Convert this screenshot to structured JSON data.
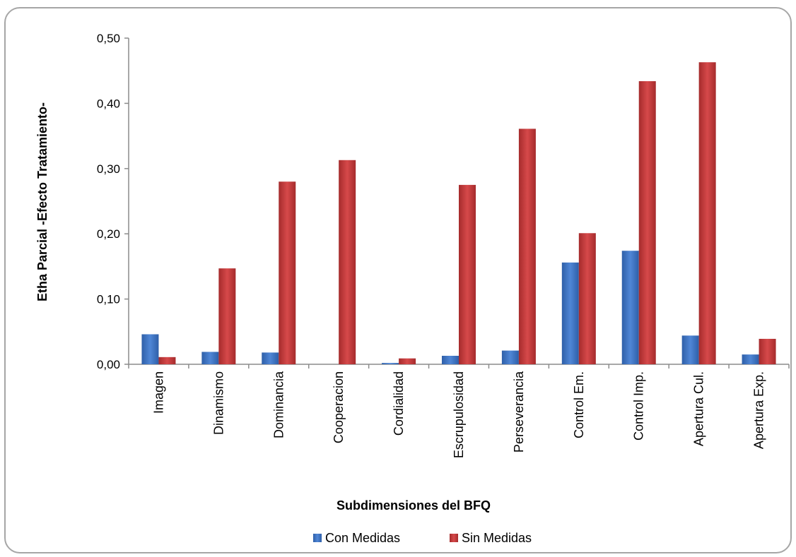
{
  "chart_data": {
    "type": "bar",
    "title": "",
    "xlabel": "Subdimensiones del BFQ",
    "ylabel": "Etha Parcial -Efecto Tratamiento-",
    "ylim": [
      0,
      0.5
    ],
    "yticks": [
      "0,00",
      "0,10",
      "0,20",
      "0,30",
      "0,40",
      "0,50"
    ],
    "grid": false,
    "legend_position": "bottom",
    "categories": [
      "Imagen",
      "Dinamismo",
      "Dominancia",
      "Cooperacion",
      "Cordialidad",
      "Escrupulosidad",
      "Perseverancia",
      "Control Em.",
      "Control Imp.",
      "Apertura Cul.",
      "Apertura Exp."
    ],
    "series": [
      {
        "name": "Con Medidas",
        "color": "#3f74c4",
        "values": [
          0.046,
          0.019,
          0.018,
          0.0,
          0.002,
          0.013,
          0.021,
          0.156,
          0.174,
          0.044,
          0.015
        ]
      },
      {
        "name": "Sin Medidas",
        "color": "#c0393b",
        "values": [
          0.011,
          0.147,
          0.28,
          0.313,
          0.009,
          0.275,
          0.361,
          0.201,
          0.434,
          0.463,
          0.039
        ]
      }
    ]
  }
}
